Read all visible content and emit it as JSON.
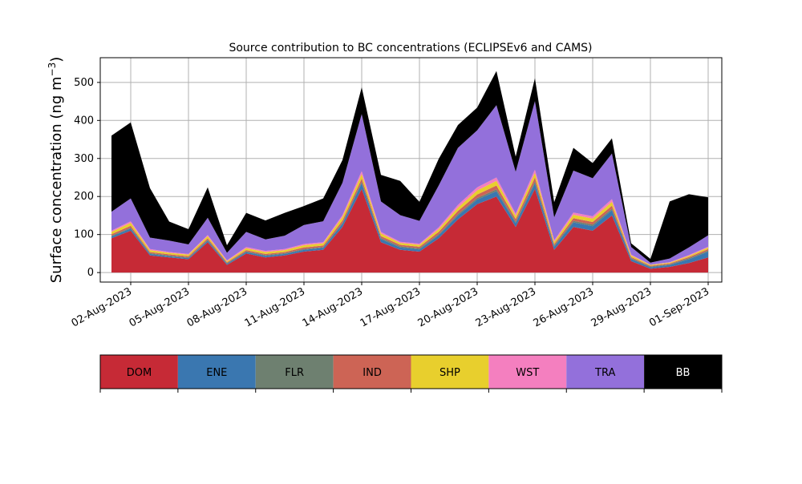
{
  "chart_data": {
    "type": "area",
    "stacked": true,
    "title": "Source contribution to BC concentrations (ECLIPSEv6 and CAMS)",
    "ylabel": "Surface concentration (ng m",
    "ylabel_sup": "−3",
    "ylabel_close": ")",
    "xlabel": "",
    "ylim": [
      -25,
      565
    ],
    "xlim": [
      "2023-07-31T10:00",
      "2023-09-01T17:00"
    ],
    "grid": true,
    "yticks": [
      0,
      100,
      200,
      300,
      400,
      500
    ],
    "yticks_labels": [
      "0",
      "100",
      "200",
      "300",
      "400",
      "500"
    ],
    "xticks": [
      "2023-08-02",
      "2023-08-05",
      "2023-08-08",
      "2023-08-11",
      "2023-08-14",
      "2023-08-17",
      "2023-08-20",
      "2023-08-23",
      "2023-08-26",
      "2023-08-29",
      "2023-09-01"
    ],
    "xtick_labels": [
      "02-Aug-2023",
      "05-Aug-2023",
      "08-Aug-2023",
      "11-Aug-2023",
      "14-Aug-2023",
      "17-Aug-2023",
      "20-Aug-2023",
      "23-Aug-2023",
      "26-Aug-2023",
      "29-Aug-2023",
      "01-Sep-2023"
    ],
    "x": [
      "2023-08-01",
      "2023-08-02",
      "2023-08-03",
      "2023-08-04",
      "2023-08-05",
      "2023-08-06",
      "2023-08-07",
      "2023-08-08",
      "2023-08-09",
      "2023-08-10",
      "2023-08-11",
      "2023-08-12",
      "2023-08-13",
      "2023-08-14",
      "2023-08-15",
      "2023-08-16",
      "2023-08-17",
      "2023-08-18",
      "2023-08-19",
      "2023-08-20",
      "2023-08-21",
      "2023-08-22",
      "2023-08-23",
      "2023-08-24",
      "2023-08-25",
      "2023-08-26",
      "2023-08-27",
      "2023-08-28",
      "2023-08-29",
      "2023-08-30",
      "2023-08-31",
      "2023-09-01"
    ],
    "series": [
      {
        "name": "DOM",
        "color": "#c62a36",
        "values": [
          90,
          110,
          45,
          40,
          35,
          80,
          20,
          50,
          40,
          45,
          55,
          60,
          120,
          220,
          80,
          60,
          55,
          90,
          140,
          180,
          200,
          120,
          220,
          60,
          120,
          110,
          150,
          30,
          10,
          15,
          25,
          40
        ]
      },
      {
        "name": "ENE",
        "color": "#3a77b0",
        "values": [
          5,
          6,
          4,
          3,
          3,
          4,
          3,
          4,
          4,
          4,
          5,
          5,
          8,
          15,
          8,
          6,
          6,
          8,
          10,
          12,
          14,
          10,
          15,
          8,
          12,
          12,
          14,
          6,
          4,
          5,
          10,
          15
        ]
      },
      {
        "name": "FLR",
        "color": "#6e8070",
        "values": [
          2,
          2,
          2,
          2,
          2,
          2,
          2,
          2,
          2,
          2,
          2,
          2,
          3,
          4,
          3,
          3,
          3,
          3,
          4,
          4,
          5,
          4,
          5,
          3,
          4,
          4,
          4,
          2,
          2,
          2,
          3,
          3
        ]
      },
      {
        "name": "IND",
        "color": "#cd6455",
        "values": [
          4,
          5,
          3,
          3,
          3,
          4,
          2,
          3,
          3,
          3,
          4,
          4,
          6,
          8,
          5,
          4,
          4,
          6,
          8,
          9,
          10,
          7,
          10,
          4,
          7,
          7,
          8,
          3,
          2,
          2,
          3,
          4
        ]
      },
      {
        "name": "SHP",
        "color": "#e8cf2d",
        "values": [
          6,
          8,
          5,
          4,
          4,
          6,
          3,
          5,
          5,
          5,
          6,
          6,
          9,
          12,
          7,
          5,
          5,
          7,
          9,
          11,
          12,
          8,
          12,
          6,
          9,
          9,
          10,
          4,
          2,
          2,
          3,
          4
        ]
      },
      {
        "name": "WST",
        "color": "#f47fbf",
        "values": [
          3,
          4,
          3,
          2,
          2,
          3,
          2,
          3,
          3,
          3,
          3,
          3,
          5,
          8,
          4,
          3,
          3,
          5,
          7,
          8,
          9,
          6,
          9,
          4,
          6,
          6,
          7,
          2,
          1,
          1,
          2,
          2
        ]
      },
      {
        "name": "TRA",
        "color": "#9370db",
        "values": [
          50,
          60,
          30,
          30,
          25,
          45,
          20,
          40,
          30,
          35,
          50,
          55,
          85,
          150,
          80,
          70,
          60,
          110,
          150,
          150,
          190,
          110,
          180,
          60,
          110,
          100,
          120,
          20,
          5,
          10,
          20,
          30
        ]
      },
      {
        "name": "BB",
        "color": "#000000",
        "values": [
          200,
          200,
          130,
          50,
          40,
          80,
          20,
          50,
          50,
          60,
          50,
          60,
          60,
          70,
          70,
          90,
          50,
          70,
          60,
          60,
          90,
          40,
          60,
          40,
          60,
          40,
          40,
          10,
          10,
          150,
          140,
          100
        ]
      }
    ]
  }
}
